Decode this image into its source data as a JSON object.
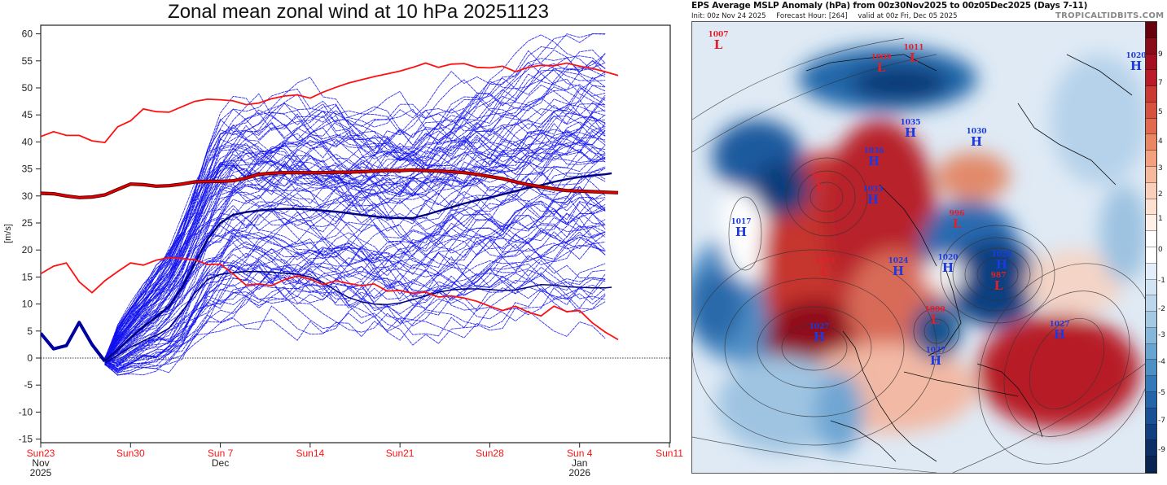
{
  "chart_data": {
    "type": "line",
    "title": "Zonal mean zonal wind at 10 hPa 20251123",
    "xlabel": "",
    "ylabel": "[m/s]",
    "xlim_days": [
      0,
      49
    ],
    "ylim": [
      -15,
      60
    ],
    "yticks": [
      -15,
      -10,
      -5,
      0,
      5,
      10,
      15,
      20,
      25,
      30,
      35,
      40,
      45,
      50,
      55,
      60
    ],
    "xticks": [
      {
        "day": 0,
        "label": "Sun23",
        "sub1": "Nov",
        "sub2": "2025"
      },
      {
        "day": 7,
        "label": "Sun30",
        "sub1": "",
        "sub2": ""
      },
      {
        "day": 14,
        "label": "Sun 7",
        "sub1": "Dec",
        "sub2": ""
      },
      {
        "day": 21,
        "label": "Sun14",
        "sub1": "",
        "sub2": ""
      },
      {
        "day": 28,
        "label": "Sun21",
        "sub1": "",
        "sub2": ""
      },
      {
        "day": 35,
        "label": "Sun28",
        "sub1": "",
        "sub2": ""
      },
      {
        "day": 42,
        "label": "Sun 4",
        "sub1": "Jan",
        "sub2": "2026"
      },
      {
        "day": 49,
        "label": "Sun11",
        "sub1": "",
        "sub2": ""
      }
    ],
    "zero_line": 0,
    "grid": false,
    "analysis_days": [
      0,
      1,
      2,
      3,
      4,
      5
    ],
    "analysis_values": [
      4.6,
      1.7,
      2.3,
      6.6,
      2.5,
      -0.6
    ],
    "forecast_start_day": 5,
    "forecast_end_day": 44.5,
    "ensemble_members": 51,
    "ensemble_color": "#1010ee",
    "climatology": {
      "days": [
        0,
        1,
        2,
        3,
        4,
        5,
        6,
        7,
        8,
        9,
        10,
        11,
        12,
        13,
        14,
        15,
        16,
        17,
        18,
        19,
        20,
        21,
        22,
        23,
        24,
        25,
        26,
        27,
        28,
        29,
        30,
        31,
        32,
        33,
        34,
        35,
        36,
        37,
        38,
        39,
        40,
        41,
        42,
        43,
        44,
        45
      ],
      "mean": [
        30.5,
        30.4,
        30.0,
        29.7,
        29.8,
        30.2,
        31.2,
        32.2,
        32.1,
        31.8,
        31.9,
        32.2,
        32.6,
        32.7,
        32.7,
        32.8,
        33.3,
        34.0,
        34.2,
        34.3,
        34.3,
        34.3,
        34.3,
        34.4,
        34.4,
        34.5,
        34.6,
        34.7,
        34.7,
        34.8,
        34.7,
        34.6,
        34.5,
        34.3,
        34.0,
        33.6,
        33.2,
        32.6,
        32.1,
        31.7,
        31.3,
        31.0,
        30.9,
        30.8,
        30.7,
        30.6
      ],
      "max": [
        41.0,
        41.9,
        41.2,
        41.2,
        40.2,
        39.9,
        42.8,
        43.9,
        46.1,
        45.6,
        45.5,
        46.5,
        47.5,
        47.9,
        47.8,
        47.6,
        46.9,
        47.2,
        48.0,
        48.5,
        48.7,
        48.1,
        49.2,
        50.1,
        50.9,
        51.5,
        52.1,
        52.6,
        53.1,
        53.8,
        54.6,
        53.8,
        54.4,
        54.5,
        53.8,
        53.7,
        54.0,
        53.0,
        53.8,
        54.2,
        54.1,
        54.6,
        54.0,
        53.6,
        53.0,
        52.3
      ],
      "min": [
        15.6,
        17.0,
        17.6,
        14.1,
        12.1,
        14.3,
        16.0,
        17.6,
        17.2,
        18.1,
        18.6,
        18.4,
        18.2,
        17.3,
        17.4,
        15.6,
        13.5,
        13.7,
        13.4,
        14.5,
        15.2,
        14.6,
        13.6,
        14.3,
        13.8,
        13.4,
        13.7,
        12.4,
        12.5,
        12.0,
        12.2,
        11.3,
        11.5,
        11.1,
        10.5,
        9.6,
        8.8,
        9.6,
        8.5,
        7.8,
        9.6,
        8.6,
        8.8,
        6.5,
        4.8,
        3.4
      ],
      "color": "#ff1010",
      "mean_color": "#e00000"
    },
    "ensemble_stats": {
      "days": [
        5,
        6,
        7,
        8,
        9,
        10,
        11,
        12,
        13,
        14,
        15,
        16,
        17,
        18,
        19,
        20,
        21,
        22,
        23,
        24,
        25,
        26,
        27,
        28,
        29,
        30,
        31,
        32,
        33,
        34,
        35,
        36,
        37,
        38,
        39,
        40,
        41,
        42,
        43,
        44,
        44.5
      ],
      "mean": [
        -0.5,
        1.5,
        3.8,
        5.8,
        7.6,
        9.6,
        13.0,
        17.5,
        22.0,
        25.0,
        26.5,
        27.0,
        27.3,
        27.5,
        27.6,
        27.6,
        27.5,
        27.3,
        27.1,
        26.8,
        26.5,
        26.2,
        26.0,
        25.9,
        25.9,
        26.5,
        27.2,
        27.9,
        28.6,
        29.2,
        29.7,
        30.3,
        30.9,
        31.5,
        32.0,
        32.6,
        33.1,
        33.5,
        33.8,
        34.0,
        34.2
      ],
      "lower": [
        -0.9,
        0.5,
        2.0,
        3.2,
        4.2,
        5.5,
        8.5,
        12.0,
        14.5,
        15.5,
        15.8,
        16.0,
        16.0,
        15.9,
        15.7,
        15.5,
        15.0,
        14.0,
        12.5,
        11.2,
        10.4,
        10.0,
        9.9,
        10.2,
        10.8,
        11.5,
        12.2,
        12.6,
        12.8,
        12.8,
        12.7,
        12.5,
        12.6,
        13.1,
        13.6,
        13.5,
        13.2,
        13.1,
        13.0,
        13.0,
        13.1
      ],
      "color": "#000080"
    }
  },
  "map": {
    "title": "EPS Average MSLP Anomaly (hPa) from 00z30Nov2025 to 00z05Dec2025 (Days 7-11)",
    "init": "Init: 00z Nov 24 2025",
    "forecast_hour": "Forecast Hour: [264]",
    "valid": "valid at 00z Fri, Dec 05 2025",
    "brand": "TROPICALTIDBITS.COM",
    "colorbar": {
      "labels": [
        "9",
        "7",
        "5",
        "4",
        "3",
        "2",
        "1",
        "0",
        "-1",
        "-2",
        "-3",
        "-4",
        "-5",
        "-7",
        "-9"
      ],
      "colors": [
        "#67000d",
        "#8a0b19",
        "#a50f22",
        "#bb1b28",
        "#cb3a32",
        "#d6523e",
        "#e16a4e",
        "#ea8662",
        "#f2a07d",
        "#f6b99d",
        "#f9cfba",
        "#fce0d2",
        "#feefe8",
        "#ffffff",
        "#ffffff",
        "#e4eef8",
        "#d2e3f2",
        "#bcd7eb",
        "#a3c9e3",
        "#86b7db",
        "#68a4d1",
        "#4d90c6",
        "#3479b8",
        "#2464a8",
        "#1a5196",
        "#113f80",
        "#0b2f66",
        "#072452"
      ]
    },
    "centers": [
      {
        "type": "L",
        "value": "1007"
      },
      {
        "type": "L",
        "value": "1009"
      },
      {
        "type": "L",
        "value": "1011"
      },
      {
        "type": "H",
        "value": "1035"
      },
      {
        "type": "H",
        "value": "1030"
      },
      {
        "type": "H",
        "value": "1020"
      },
      {
        "type": "H",
        "value": "1036"
      },
      {
        "type": "L",
        "value": "997"
      },
      {
        "type": "H",
        "value": "1033"
      },
      {
        "type": "L",
        "value": "996"
      },
      {
        "type": "H",
        "value": "1020"
      },
      {
        "type": "H",
        "value": "1017"
      },
      {
        "type": "L",
        "value": "1003"
      },
      {
        "type": "H",
        "value": "1024"
      },
      {
        "type": "H",
        "value": "1020"
      },
      {
        "type": "L",
        "value": "987"
      },
      {
        "type": "L",
        "value": "1000"
      },
      {
        "type": "H",
        "value": "1027"
      },
      {
        "type": "H",
        "value": "1027"
      },
      {
        "type": "H",
        "value": "1027"
      }
    ]
  }
}
